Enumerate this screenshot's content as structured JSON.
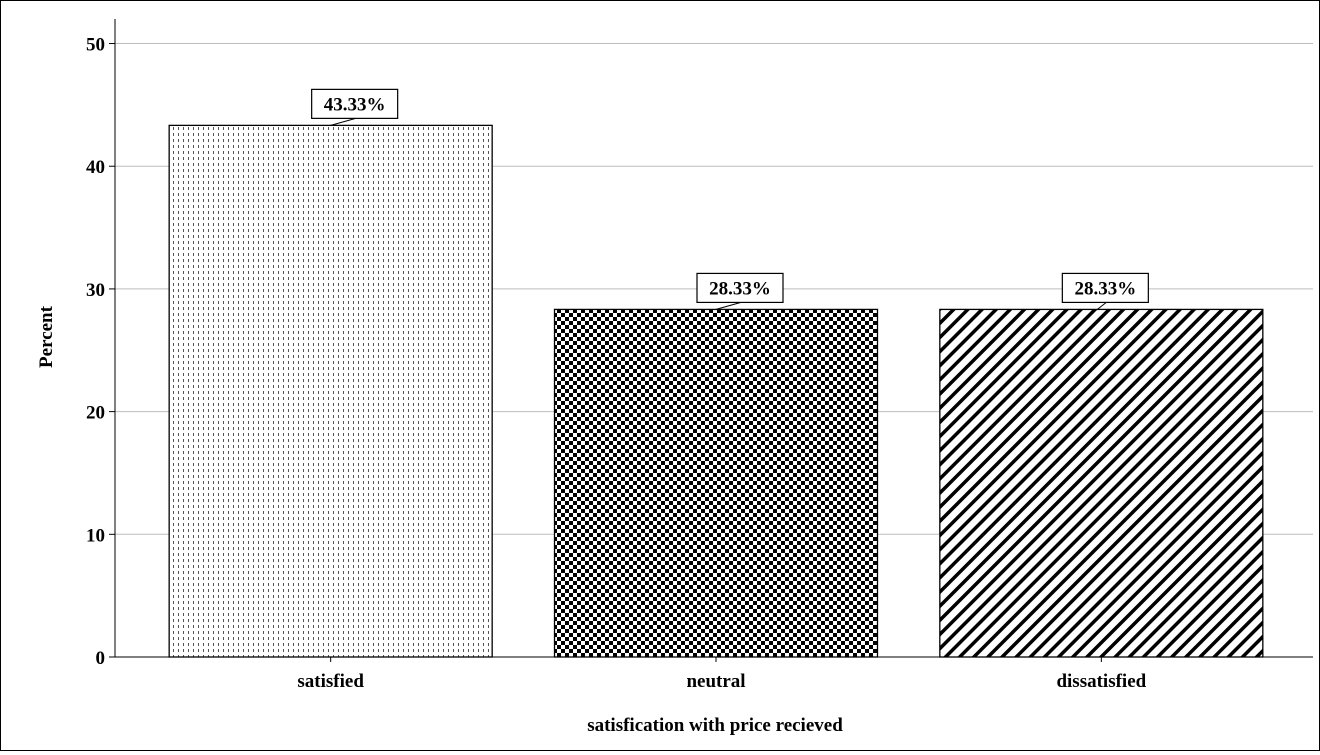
{
  "chart_data": {
    "type": "bar",
    "categories": [
      "satisfied",
      "neutral",
      "dissatisfied"
    ],
    "values": [
      43.33,
      28.33,
      28.33
    ],
    "data_labels": [
      "43.33%",
      "28.33%",
      "28.33%"
    ],
    "xlabel": "satisfication with price recieved",
    "ylabel": "Percent",
    "ylim": [
      0,
      52
    ],
    "yticks": [
      0,
      10,
      20,
      30,
      40,
      50
    ],
    "ytick_labels": [
      "0",
      "10",
      "20",
      "30",
      "40",
      "50"
    ],
    "grid": true,
    "bar_patterns": [
      "vertical-dots",
      "checkerboard",
      "diagonal-stripes"
    ]
  }
}
